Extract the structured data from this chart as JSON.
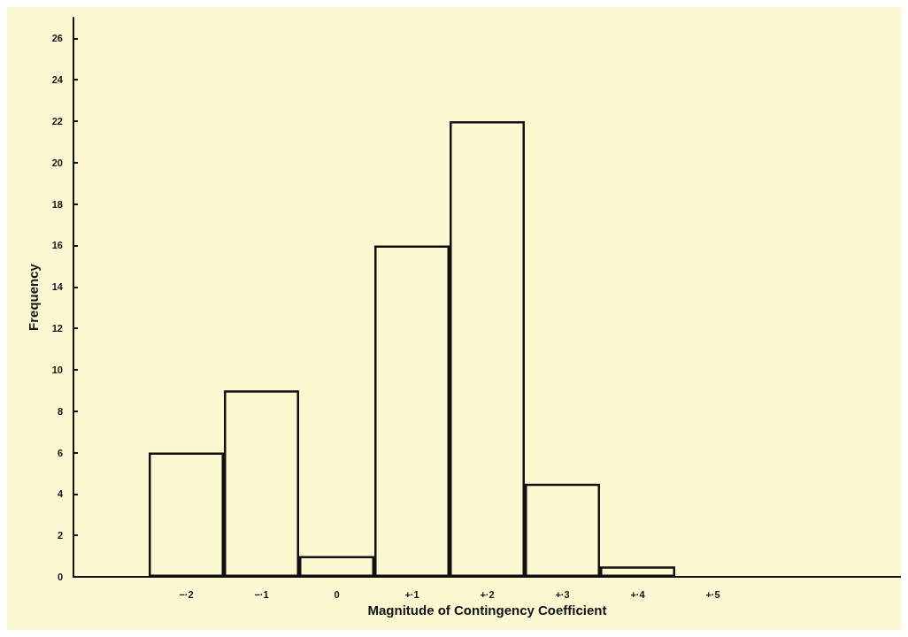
{
  "chart_data": {
    "type": "bar",
    "xlabel": "Magnitude of Contingency Coefficient",
    "ylabel": "Frequency",
    "categories": [
      null,
      "−·2",
      "−·1",
      "0",
      "+·1",
      "+·2",
      "+·3",
      "+·4",
      "+·5",
      null,
      null
    ],
    "values": [
      null,
      6,
      9,
      1,
      16,
      22,
      4.5,
      0.5,
      null,
      null,
      null
    ],
    "color": "#111111",
    "ylim": [
      0,
      27
    ],
    "yticks": [
      0,
      2,
      4,
      6,
      8,
      10,
      12,
      14,
      16,
      18,
      20,
      22,
      24,
      26
    ],
    "grid": false
  }
}
